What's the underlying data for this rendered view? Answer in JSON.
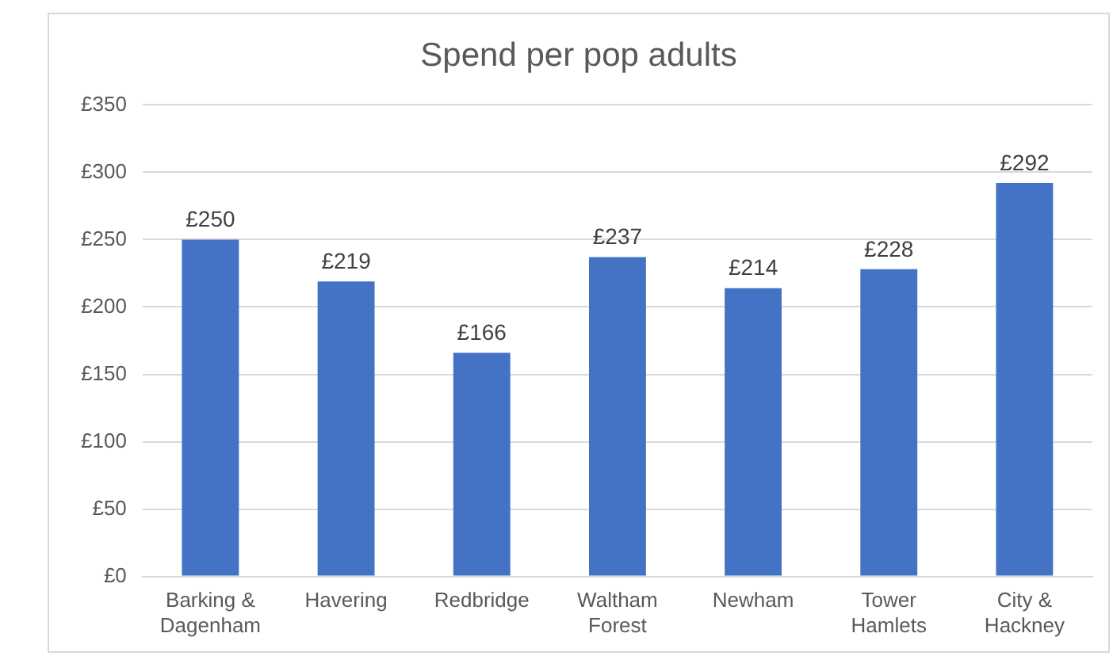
{
  "chart_data": {
    "type": "bar",
    "title": "Spend per pop adults",
    "categories": [
      "Barking & Dagenham",
      "Havering",
      "Redbridge",
      "Waltham Forest",
      "Newham",
      "Tower Hamlets",
      "City & Hackney"
    ],
    "values": [
      250,
      219,
      166,
      237,
      214,
      228,
      292
    ],
    "value_labels": [
      "£250",
      "£219",
      "£166",
      "£237",
      "£214",
      "£228",
      "£292"
    ],
    "color": "#4472c4",
    "ylim": [
      0,
      350
    ],
    "yticks": [
      {
        "value": 0,
        "label": "£0"
      },
      {
        "value": 50,
        "label": "£50"
      },
      {
        "value": 100,
        "label": "£100"
      },
      {
        "value": 150,
        "label": "£150"
      },
      {
        "value": 200,
        "label": "£200"
      },
      {
        "value": 250,
        "label": "£250"
      },
      {
        "value": 300,
        "label": "£300"
      },
      {
        "value": 350,
        "label": "£350"
      }
    ],
    "grid": "y",
    "legend": false
  }
}
